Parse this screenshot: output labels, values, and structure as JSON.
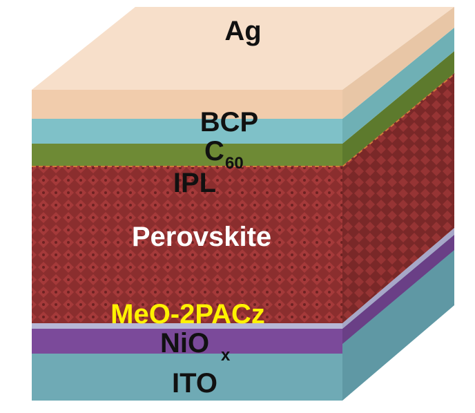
{
  "layers": [
    {
      "id": "ag",
      "label": "Ag",
      "front": "#f0c9a8",
      "top": "#f6dcc4",
      "side": "#e8c6a6"
    },
    {
      "id": "bcp",
      "label": "BCP",
      "front": "#7fc1c8",
      "side": "#6fb0b5"
    },
    {
      "id": "c60",
      "label": "C",
      "sub": "60",
      "front": "#6e8a35",
      "side": "#5d7a2d"
    },
    {
      "id": "ipl",
      "label": "IPL",
      "front": "#d07a3a",
      "side": "#b86a30"
    },
    {
      "id": "perovskite",
      "label": "Perovskite",
      "front": "#8a2f2f",
      "side": "#7a2828",
      "label_color": "#ffffff"
    },
    {
      "id": "meo2pacz",
      "label": "MeO-2PACz",
      "front": "#b7b7d6",
      "side": "#a7a7c8",
      "label_color": "#fff200"
    },
    {
      "id": "niox",
      "label": "NiO",
      "sub": "x",
      "front": "#7b4a9a",
      "side": "#6a3f86"
    },
    {
      "id": "ito",
      "label": "ITO",
      "front": "#6faab5",
      "side": "#5f98a4"
    }
  ]
}
